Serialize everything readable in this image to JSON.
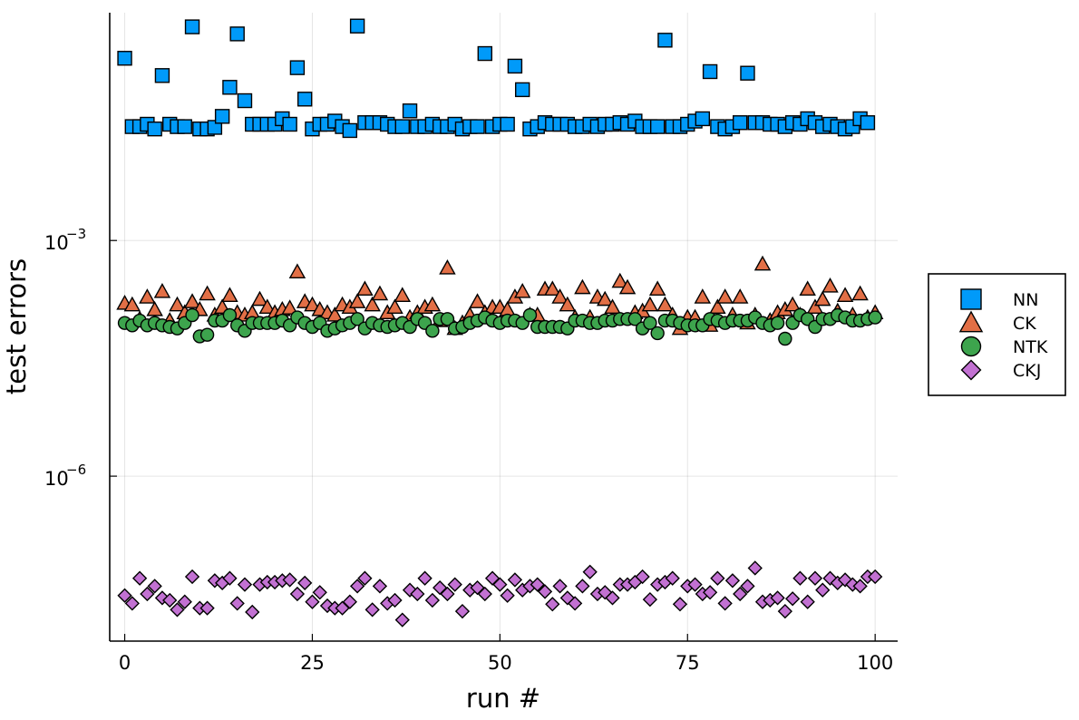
{
  "chart_data": {
    "type": "scatter",
    "title": "",
    "xlabel": "run #",
    "ylabel": "test errors",
    "x_scale": "linear",
    "y_scale": "log10",
    "xlim": [
      -2,
      103
    ],
    "ylim_log10": [
      -8.1,
      -0.1
    ],
    "x_ticks": [
      0,
      25,
      50,
      75,
      100
    ],
    "y_ticks": [
      {
        "exp": -3,
        "base": "10",
        "sup": "−3"
      },
      {
        "exp": -6,
        "base": "10",
        "sup": "−6"
      }
    ],
    "grid": true,
    "legend_position": "right",
    "series": [
      {
        "name": "NN",
        "marker": "square",
        "color": "#009af9",
        "log10_values": [
          -0.68,
          -1.55,
          -1.55,
          -1.52,
          -1.58,
          -0.9,
          -1.52,
          -1.55,
          -1.55,
          -0.28,
          -1.58,
          -1.58,
          -1.56,
          -1.42,
          -1.05,
          -0.37,
          -1.22,
          -1.52,
          -1.52,
          -1.52,
          -1.52,
          -1.45,
          -1.52,
          -0.8,
          -1.2,
          -1.58,
          -1.52,
          -1.52,
          -1.48,
          -1.55,
          -1.6,
          -0.27,
          -1.5,
          -1.5,
          -1.5,
          -1.52,
          -1.55,
          -1.55,
          -1.35,
          -1.55,
          -1.55,
          -1.52,
          -1.55,
          -1.55,
          -1.52,
          -1.58,
          -1.55,
          -1.55,
          -0.62,
          -1.55,
          -1.52,
          -1.52,
          -0.78,
          -1.08,
          -1.58,
          -1.55,
          -1.5,
          -1.52,
          -1.52,
          -1.52,
          -1.55,
          -1.55,
          -1.52,
          -1.55,
          -1.52,
          -1.52,
          -1.5,
          -1.52,
          -1.48,
          -1.55,
          -1.55,
          -1.55,
          -0.45,
          -1.55,
          -1.55,
          -1.52,
          -1.48,
          -1.45,
          -0.85,
          -1.55,
          -1.58,
          -1.55,
          -1.5,
          -0.87,
          -1.5,
          -1.5,
          -1.52,
          -1.52,
          -1.55,
          -1.5,
          -1.52,
          -1.45,
          -1.5,
          -1.55,
          -1.52,
          -1.55,
          -1.58,
          -1.55,
          -1.45,
          -1.5
        ]
      },
      {
        "name": "CK",
        "marker": "triangle",
        "color": "#e26f46",
        "log10_values": [
          -3.8,
          -3.82,
          -4.0,
          -3.72,
          -3.88,
          -3.65,
          -4.02,
          -3.82,
          -3.92,
          -3.78,
          -3.88,
          -3.68,
          -3.95,
          -3.85,
          -3.7,
          -3.92,
          -3.95,
          -3.92,
          -3.75,
          -3.85,
          -3.92,
          -3.88,
          -3.86,
          -3.4,
          -3.78,
          -3.82,
          -3.88,
          -3.92,
          -3.95,
          -3.82,
          -3.85,
          -3.78,
          -3.62,
          -3.82,
          -3.68,
          -3.92,
          -3.85,
          -3.7,
          -3.98,
          -3.92,
          -3.85,
          -3.82,
          -4.02,
          -3.35,
          -4.12,
          -4.05,
          -3.95,
          -3.78,
          -3.92,
          -3.85,
          -3.85,
          -3.88,
          -3.72,
          -3.65,
          -3.95,
          -3.95,
          -3.62,
          -3.62,
          -3.72,
          -3.82,
          -3.98,
          -3.6,
          -3.98,
          -3.72,
          -3.75,
          -3.85,
          -3.52,
          -3.6,
          -3.92,
          -3.9,
          -3.82,
          -3.62,
          -3.82,
          -3.95,
          -4.12,
          -3.98,
          -3.98,
          -3.72,
          -4.08,
          -3.85,
          -3.72,
          -3.95,
          -3.72,
          -4.05,
          -3.95,
          -3.3,
          -4.02,
          -3.92,
          -3.88,
          -3.82,
          -3.95,
          -3.62,
          -3.85,
          -3.75,
          -3.58,
          -3.9,
          -3.7,
          -3.95,
          -3.68,
          -3.98,
          -3.92
        ]
      },
      {
        "name": "NTK",
        "marker": "circle",
        "color": "#3da44d",
        "log10_values": [
          -4.05,
          -4.08,
          -4.02,
          -4.08,
          -4.05,
          -4.08,
          -4.1,
          -4.12,
          -4.05,
          -3.95,
          -4.22,
          -4.2,
          -4.02,
          -4.02,
          -3.95,
          -4.08,
          -4.15,
          -4.05,
          -4.05,
          -4.05,
          -4.05,
          -4.02,
          -4.08,
          -3.98,
          -4.05,
          -4.1,
          -4.05,
          -4.15,
          -4.12,
          -4.08,
          -4.05,
          -4.0,
          -4.12,
          -4.05,
          -4.08,
          -4.1,
          -4.08,
          -4.05,
          -4.1,
          -4.0,
          -4.05,
          -4.15,
          -4.0,
          -4.0,
          -4.12,
          -4.1,
          -4.05,
          -4.02,
          -3.98,
          -4.02,
          -4.05,
          -4.02,
          -4.02,
          -4.05,
          -3.95,
          -4.1,
          -4.1,
          -4.1,
          -4.1,
          -4.12,
          -4.02,
          -4.02,
          -4.05,
          -4.05,
          -4.02,
          -4.02,
          -4.0,
          -4.0,
          -4.0,
          -4.12,
          -4.05,
          -4.18,
          -4.02,
          -4.02,
          -4.05,
          -4.08,
          -4.08,
          -4.08,
          -4.0,
          -4.02,
          -4.05,
          -4.02,
          -4.02,
          -4.02,
          -3.98,
          -4.05,
          -4.08,
          -4.05,
          -4.25,
          -4.05,
          -3.95,
          -4.0,
          -4.1,
          -4.0,
          -4.0,
          -3.95,
          -3.98,
          -4.02,
          -4.02,
          -4.0,
          -3.98
        ]
      },
      {
        "name": "CKJ",
        "marker": "diamond",
        "color": "#c271d2",
        "log10_values": [
          -7.52,
          -7.62,
          -7.3,
          -7.5,
          -7.4,
          -7.55,
          -7.58,
          -7.7,
          -7.6,
          -7.28,
          -7.68,
          -7.68,
          -7.33,
          -7.36,
          -7.3,
          -7.62,
          -7.38,
          -7.73,
          -7.38,
          -7.35,
          -7.35,
          -7.33,
          -7.32,
          -7.5,
          -7.36,
          -7.6,
          -7.48,
          -7.65,
          -7.68,
          -7.68,
          -7.6,
          -7.4,
          -7.3,
          -7.7,
          -7.4,
          -7.62,
          -7.58,
          -7.83,
          -7.45,
          -7.5,
          -7.3,
          -7.58,
          -7.42,
          -7.5,
          -7.38,
          -7.72,
          -7.45,
          -7.42,
          -7.5,
          -7.3,
          -7.38,
          -7.52,
          -7.32,
          -7.45,
          -7.4,
          -7.38,
          -7.47,
          -7.63,
          -7.4,
          -7.55,
          -7.62,
          -7.4,
          -7.22,
          -7.5,
          -7.48,
          -7.55,
          -7.38,
          -7.38,
          -7.35,
          -7.28,
          -7.57,
          -7.38,
          -7.35,
          -7.3,
          -7.63,
          -7.4,
          -7.38,
          -7.5,
          -7.48,
          -7.3,
          -7.62,
          -7.33,
          -7.5,
          -7.4,
          -7.17,
          -7.6,
          -7.58,
          -7.55,
          -7.72,
          -7.56,
          -7.3,
          -7.6,
          -7.3,
          -7.45,
          -7.3,
          -7.36,
          -7.32,
          -7.38,
          -7.4,
          -7.28,
          -7.28
        ]
      }
    ]
  }
}
